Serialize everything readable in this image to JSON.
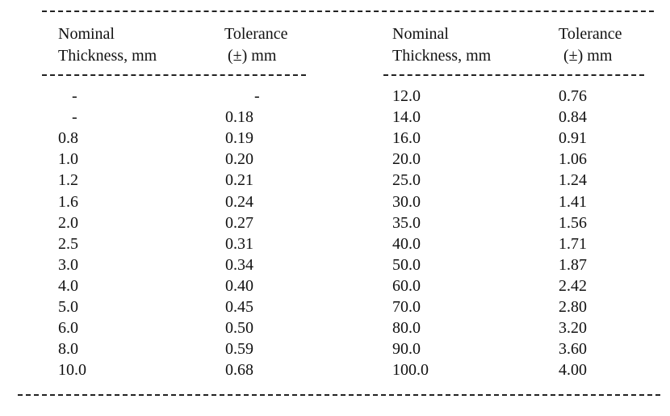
{
  "headers": {
    "left_nominal": [
      "Nominal",
      "Thickness, mm"
    ],
    "left_tolerance": [
      "Tolerance",
      "(±) mm"
    ],
    "right_nominal": [
      "Nominal",
      "Thickness, mm"
    ],
    "right_tolerance": [
      "Tolerance",
      "(±) mm"
    ]
  },
  "left_rows": [
    {
      "thickness": "-",
      "tolerance": "-"
    },
    {
      "thickness": "-",
      "tolerance": "0.18"
    },
    {
      "thickness": "0.8",
      "tolerance": "0.19"
    },
    {
      "thickness": "1.0",
      "tolerance": "0.20"
    },
    {
      "thickness": "1.2",
      "tolerance": "0.21"
    },
    {
      "thickness": "1.6",
      "tolerance": "0.24"
    },
    {
      "thickness": "2.0",
      "tolerance": "0.27"
    },
    {
      "thickness": "2.5",
      "tolerance": "0.31"
    },
    {
      "thickness": "3.0",
      "tolerance": "0.34"
    },
    {
      "thickness": "4.0",
      "tolerance": "0.40"
    },
    {
      "thickness": "5.0",
      "tolerance": "0.45"
    },
    {
      "thickness": "6.0",
      "tolerance": "0.50"
    },
    {
      "thickness": "8.0",
      "tolerance": "0.59"
    },
    {
      "thickness": "10.0",
      "tolerance": "0.68"
    }
  ],
  "right_rows": [
    {
      "thickness": "12.0",
      "tolerance": "0.76"
    },
    {
      "thickness": "14.0",
      "tolerance": "0.84"
    },
    {
      "thickness": "16.0",
      "tolerance": "0.91"
    },
    {
      "thickness": "20.0",
      "tolerance": "1.06"
    },
    {
      "thickness": "25.0",
      "tolerance": "1.24"
    },
    {
      "thickness": "30.0",
      "tolerance": "1.41"
    },
    {
      "thickness": "35.0",
      "tolerance": "1.56"
    },
    {
      "thickness": "40.0",
      "tolerance": "1.71"
    },
    {
      "thickness": "50.0",
      "tolerance": "1.87"
    },
    {
      "thickness": "60.0",
      "tolerance": "2.42"
    },
    {
      "thickness": "70.0",
      "tolerance": "2.80"
    },
    {
      "thickness": "80.0",
      "tolerance": "3.20"
    },
    {
      "thickness": "90.0",
      "tolerance": "3.60"
    },
    {
      "thickness": "100.0",
      "tolerance": "4.00"
    }
  ]
}
